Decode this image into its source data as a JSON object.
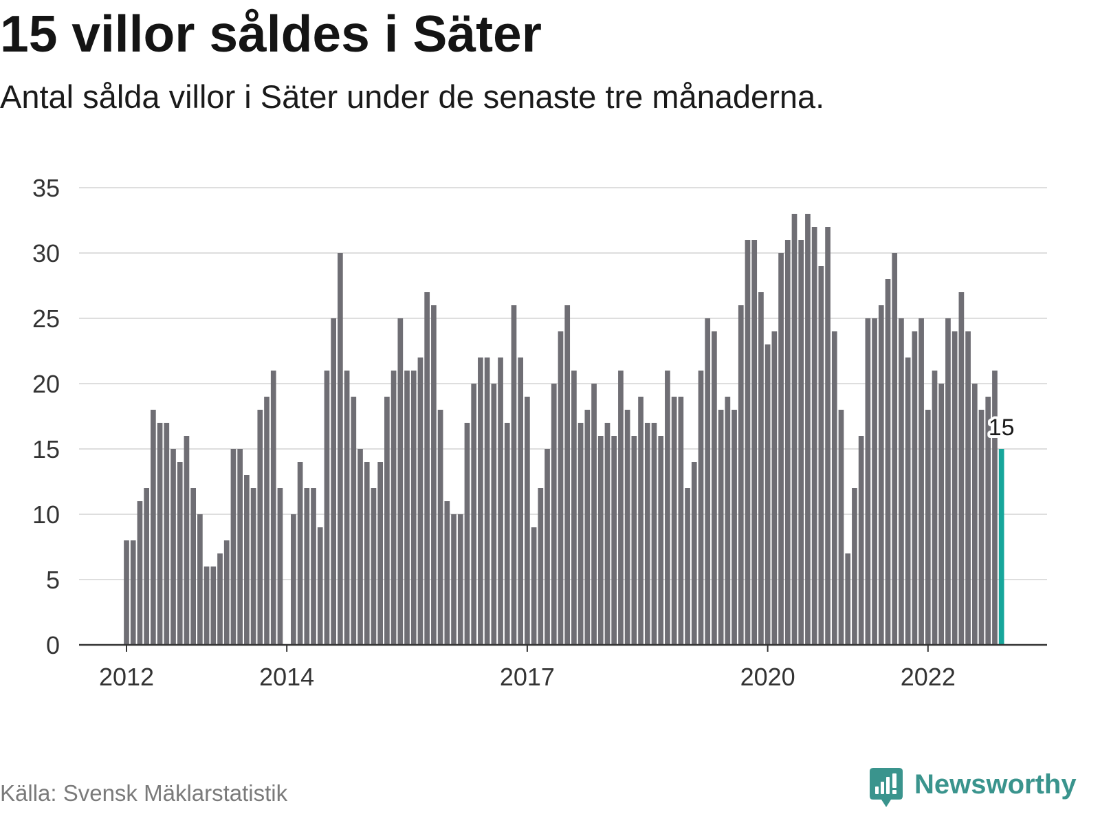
{
  "chart_data": {
    "type": "bar",
    "title": "15 villor såldes i Säter",
    "subtitle": "Antal sålda villor i Säter under de senaste tre månaderna.",
    "x": [
      "2012-01",
      "2012-02",
      "2012-03",
      "2012-04",
      "2012-05",
      "2012-06",
      "2012-07",
      "2012-08",
      "2012-09",
      "2012-10",
      "2012-11",
      "2012-12",
      "2013-01",
      "2013-02",
      "2013-03",
      "2013-04",
      "2013-05",
      "2013-06",
      "2013-07",
      "2013-08",
      "2013-09",
      "2013-10",
      "2013-11",
      "2013-12",
      "2014-01",
      "2014-02",
      "2014-03",
      "2014-04",
      "2014-05",
      "2014-06",
      "2014-07",
      "2014-08",
      "2014-09",
      "2014-10",
      "2014-11",
      "2014-12",
      "2015-01",
      "2015-02",
      "2015-03",
      "2015-04",
      "2015-05",
      "2015-06",
      "2015-07",
      "2015-08",
      "2015-09",
      "2015-10",
      "2015-11",
      "2015-12",
      "2016-01",
      "2016-02",
      "2016-03",
      "2016-04",
      "2016-05",
      "2016-06",
      "2016-07",
      "2016-08",
      "2016-09",
      "2016-10",
      "2016-11",
      "2016-12",
      "2017-01",
      "2017-02",
      "2017-03",
      "2017-04",
      "2017-05",
      "2017-06",
      "2017-07",
      "2017-08",
      "2017-09",
      "2017-10",
      "2017-11",
      "2017-12",
      "2018-01",
      "2018-02",
      "2018-03",
      "2018-04",
      "2018-05",
      "2018-06",
      "2018-07",
      "2018-08",
      "2018-09",
      "2018-10",
      "2018-11",
      "2018-12",
      "2019-01",
      "2019-02",
      "2019-03",
      "2019-04",
      "2019-05",
      "2019-06",
      "2019-07",
      "2019-08",
      "2019-09",
      "2019-10",
      "2019-11",
      "2019-12",
      "2020-01",
      "2020-02",
      "2020-03",
      "2020-04",
      "2020-05",
      "2020-06",
      "2020-07",
      "2020-08",
      "2020-09",
      "2020-10",
      "2020-11",
      "2020-12",
      "2021-01",
      "2021-02",
      "2021-03",
      "2021-04",
      "2021-05",
      "2021-06",
      "2021-07",
      "2021-08",
      "2021-09",
      "2021-10",
      "2021-11",
      "2021-12",
      "2022-01",
      "2022-02",
      "2022-03",
      "2022-04",
      "2022-05",
      "2022-06",
      "2022-07",
      "2022-08",
      "2022-09",
      "2022-10",
      "2022-11",
      "2022-12"
    ],
    "values": [
      8,
      8,
      11,
      12,
      18,
      17,
      17,
      15,
      14,
      16,
      12,
      10,
      6,
      6,
      7,
      8,
      15,
      15,
      13,
      12,
      18,
      19,
      21,
      12,
      null,
      10,
      14,
      12,
      12,
      9,
      21,
      25,
      30,
      21,
      19,
      15,
      14,
      12,
      14,
      19,
      21,
      25,
      21,
      21,
      22,
      27,
      26,
      18,
      11,
      10,
      10,
      17,
      20,
      22,
      22,
      20,
      22,
      17,
      26,
      22,
      19,
      9,
      12,
      15,
      20,
      24,
      26,
      21,
      17,
      18,
      20,
      16,
      17,
      16,
      21,
      18,
      16,
      19,
      17,
      17,
      16,
      21,
      19,
      19,
      12,
      14,
      21,
      25,
      24,
      18,
      19,
      18,
      26,
      31,
      31,
      27,
      23,
      24,
      30,
      31,
      33,
      31,
      33,
      32,
      29,
      32,
      24,
      18,
      7,
      12,
      16,
      25,
      25,
      26,
      28,
      30,
      25,
      22,
      24,
      25,
      18,
      21,
      20,
      25,
      24,
      27,
      24,
      20,
      18,
      19,
      21,
      15
    ],
    "highlight": {
      "x": "2022-12",
      "label": "15"
    },
    "ylim": [
      0,
      35
    ],
    "yticks": [
      0,
      5,
      10,
      15,
      20,
      25,
      30,
      35
    ],
    "xticks": [
      {
        "x": "2012-01",
        "label": "2012"
      },
      {
        "x": "2014-01",
        "label": "2014"
      },
      {
        "x": "2017-01",
        "label": "2017"
      },
      {
        "x": "2020-01",
        "label": "2020"
      },
      {
        "x": "2022-01",
        "label": "2022"
      }
    ],
    "grid": true,
    "legend": "none",
    "colors": {
      "bar": "#6f6e74",
      "highlight": "#17a69b",
      "gridline": "#dedede",
      "axis": "#333333",
      "tick_text": "#333333",
      "value_label": "#1a1a1a"
    }
  },
  "footer": {
    "source": "Källa: Svensk Mäklarstatistik",
    "brand": "Newsworthy",
    "brand_icon": "newsworthy-logo-icon",
    "brand_color": "#3a948d"
  }
}
